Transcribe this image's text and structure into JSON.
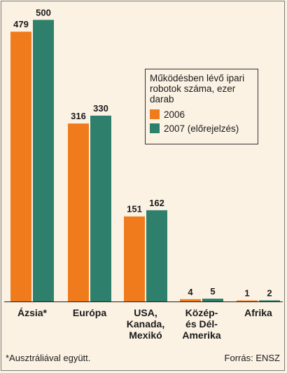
{
  "chart_data": {
    "type": "bar",
    "categories": [
      [
        "Ázsia*"
      ],
      [
        "Európa"
      ],
      [
        "USA,",
        "Kanada,",
        "Mexikó"
      ],
      [
        "Közép-",
        "és Dél-",
        "Amerika"
      ],
      [
        "Afrika"
      ]
    ],
    "series": [
      {
        "name": "2006",
        "values": [
          479,
          316,
          151,
          4,
          1
        ],
        "color": "#f07b1c"
      },
      {
        "name": "2007 (előrejelzés)",
        "values": [
          500,
          330,
          162,
          5,
          2
        ],
        "color": "#2e7f6c"
      }
    ],
    "ylim": [
      0,
      520
    ],
    "legend_title": "Működésben lévő ipari robotok száma, ezer darab",
    "legend_placement": "top-right",
    "grid": false
  },
  "footnote": "*Ausztráliával együtt.",
  "source": "Forrás: ENSZ"
}
